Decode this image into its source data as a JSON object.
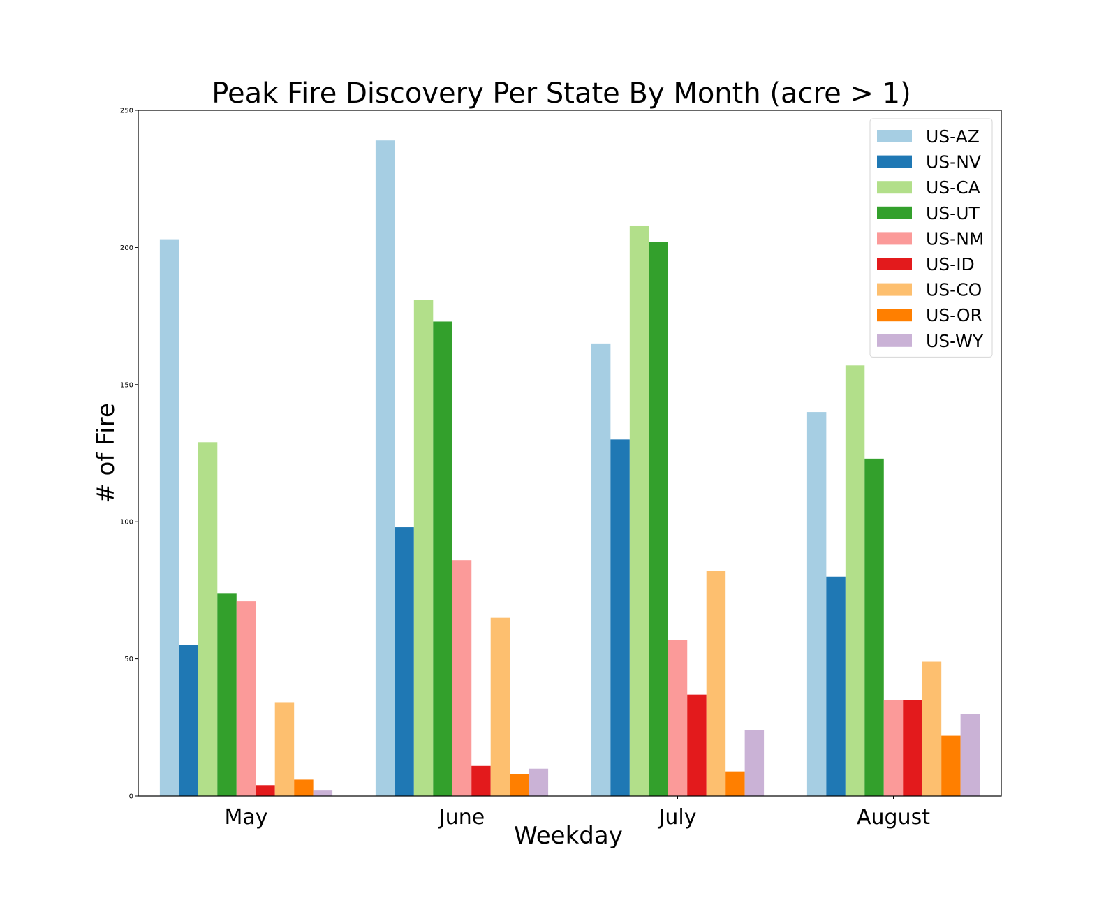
{
  "chart_data": {
    "type": "bar",
    "title": "Peak Fire Discovery Per State By Month (acre > 1)",
    "xlabel": "Weekday",
    "ylabel": "# of Fire",
    "categories": [
      "May",
      "June",
      "July",
      "August"
    ],
    "ylim": [
      0,
      250
    ],
    "yticks": [
      0,
      50,
      100,
      150,
      200,
      250
    ],
    "grid": false,
    "legend_position": "top-right",
    "series": [
      {
        "name": "US-AZ",
        "color": "#a6cee3",
        "values": [
          203,
          239,
          165,
          140
        ]
      },
      {
        "name": "US-NV",
        "color": "#1f78b4",
        "values": [
          55,
          98,
          130,
          80
        ]
      },
      {
        "name": "US-CA",
        "color": "#b2df8a",
        "values": [
          129,
          181,
          208,
          157
        ]
      },
      {
        "name": "US-UT",
        "color": "#33a02c",
        "values": [
          74,
          173,
          202,
          123
        ]
      },
      {
        "name": "US-NM",
        "color": "#fb9a99",
        "values": [
          71,
          86,
          57,
          35
        ]
      },
      {
        "name": "US-ID",
        "color": "#e31a1c",
        "values": [
          4,
          11,
          37,
          35
        ]
      },
      {
        "name": "US-CO",
        "color": "#fdbf6f",
        "values": [
          34,
          65,
          82,
          49
        ]
      },
      {
        "name": "US-OR",
        "color": "#ff7f00",
        "values": [
          6,
          8,
          9,
          22
        ]
      },
      {
        "name": "US-WY",
        "color": "#cab2d6",
        "values": [
          2,
          10,
          24,
          30
        ]
      }
    ]
  }
}
